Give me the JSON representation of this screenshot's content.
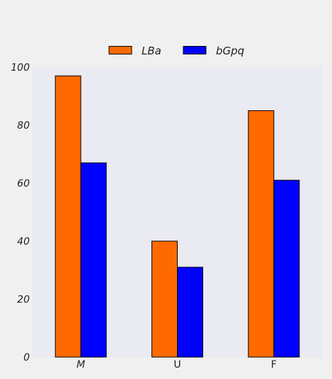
{
  "chart_data": {
    "type": "bar",
    "categories": [
      "M",
      "U",
      "F"
    ],
    "category_italic": [
      true,
      false,
      false
    ],
    "series": [
      {
        "name": "LBa",
        "values": [
          97,
          40,
          85
        ],
        "color": "#ff6a00"
      },
      {
        "name": "bGpq",
        "values": [
          67,
          31,
          61
        ],
        "color": "#0000ff"
      }
    ],
    "ylim": [
      0,
      100
    ],
    "yticks": [
      0,
      20,
      40,
      60,
      80,
      100
    ],
    "title": "",
    "xlabel": "",
    "ylabel": "",
    "grid": false,
    "legend_position": "top-center",
    "plot_background": "#eaeaf2",
    "page_background": "#f0f0f0"
  }
}
